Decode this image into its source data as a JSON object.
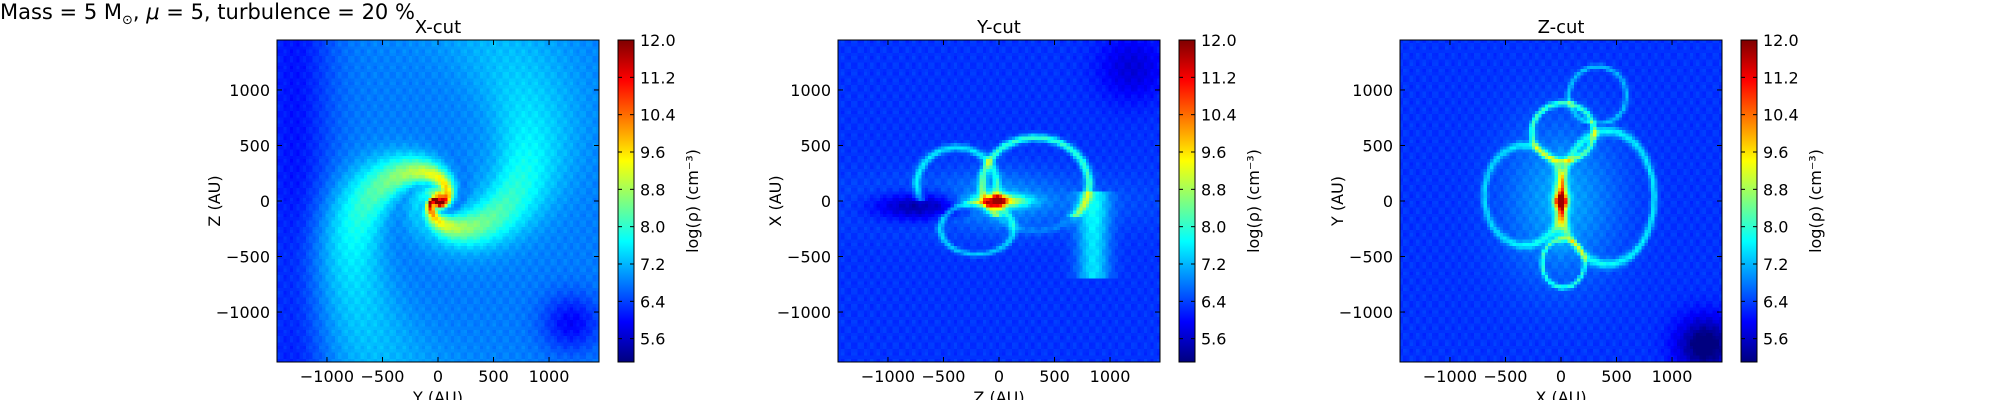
{
  "figure_title": {
    "prefix": "Mass = 5 M",
    "sub": "⊙",
    "mid": ", ",
    "mu": "μ",
    "suffix": " = 5, turbulence = 20 %"
  },
  "colormap": {
    "name": "jet",
    "stops": [
      "#00007f",
      "#0000ff",
      "#007fff",
      "#00ffff",
      "#7fff7f",
      "#ffff00",
      "#ff7f00",
      "#ff0000",
      "#7f0000"
    ]
  },
  "chart_data": [
    {
      "type": "heatmap",
      "title": "X-cut",
      "xlabel": "Y (AU)",
      "ylabel": "Z (AU)",
      "xlim": [
        -1450,
        1450
      ],
      "ylim": [
        -1450,
        1450
      ],
      "xticks": [
        -1000,
        -500,
        0,
        500,
        1000
      ],
      "xtick_labels": [
        "−1000",
        "−500",
        "0",
        "500",
        "1000"
      ],
      "yticks": [
        -1000,
        -500,
        0,
        500,
        1000
      ],
      "ytick_labels": [
        "−1000",
        "−500",
        "0",
        "500",
        "1000"
      ],
      "colorbar": {
        "label": "log(ρ) (cm⁻³)",
        "range": [
          5.1,
          12.0
        ],
        "ticks": [
          5.6,
          6.4,
          7.2,
          8.0,
          8.8,
          9.6,
          10.4,
          11.2,
          12.0
        ],
        "tick_labels": [
          "5.6",
          "6.4",
          "7.2",
          "8.0",
          "8.8",
          "9.6",
          "10.4",
          "11.2",
          "12.0"
        ]
      },
      "morphology": "spiral",
      "peak_log_density": 12.0,
      "background_log_density": 6.8
    },
    {
      "type": "heatmap",
      "title": "Y-cut",
      "xlabel": "Z (AU)",
      "ylabel": "X (AU)",
      "xlim": [
        -1450,
        1450
      ],
      "ylim": [
        -1450,
        1450
      ],
      "xticks": [
        -1000,
        -500,
        0,
        500,
        1000
      ],
      "xtick_labels": [
        "−1000",
        "−500",
        "0",
        "500",
        "1000"
      ],
      "yticks": [
        -1000,
        -500,
        0,
        500,
        1000
      ],
      "ytick_labels": [
        "−1000",
        "−500",
        "0",
        "500",
        "1000"
      ],
      "colorbar": {
        "label": "log(ρ) (cm⁻³)",
        "range": [
          5.1,
          12.0
        ],
        "ticks": [
          5.6,
          6.4,
          7.2,
          8.0,
          8.8,
          9.6,
          10.4,
          11.2,
          12.0
        ],
        "tick_labels": [
          "5.6",
          "6.4",
          "7.2",
          "8.0",
          "8.8",
          "9.6",
          "10.4",
          "11.2",
          "12.0"
        ]
      },
      "morphology": "edge-on disk with outflow arcs",
      "peak_log_density": 11.8,
      "background_log_density": 6.3
    },
    {
      "type": "heatmap",
      "title": "Z-cut",
      "xlabel": "X (AU)",
      "ylabel": "Y (AU)",
      "xlim": [
        -1450,
        1450
      ],
      "ylim": [
        -1450,
        1450
      ],
      "xticks": [
        -1000,
        -500,
        0,
        500,
        1000
      ],
      "xtick_labels": [
        "−1000",
        "−500",
        "0",
        "500",
        "1000"
      ],
      "yticks": [
        -1000,
        -500,
        0,
        500,
        1000
      ],
      "ytick_labels": [
        "−1000",
        "−500",
        "0",
        "500",
        "1000"
      ],
      "colorbar": {
        "label": "log(ρ) (cm⁻³)",
        "range": [
          5.1,
          12.0
        ],
        "ticks": [
          5.6,
          6.4,
          7.2,
          8.0,
          8.8,
          9.6,
          10.4,
          11.2,
          12.0
        ],
        "tick_labels": [
          "5.6",
          "6.4",
          "7.2",
          "8.0",
          "8.8",
          "9.6",
          "10.4",
          "11.2",
          "12.0"
        ]
      },
      "morphology": "bipolar cavities and loops",
      "peak_log_density": 11.8,
      "background_log_density": 6.3
    }
  ]
}
